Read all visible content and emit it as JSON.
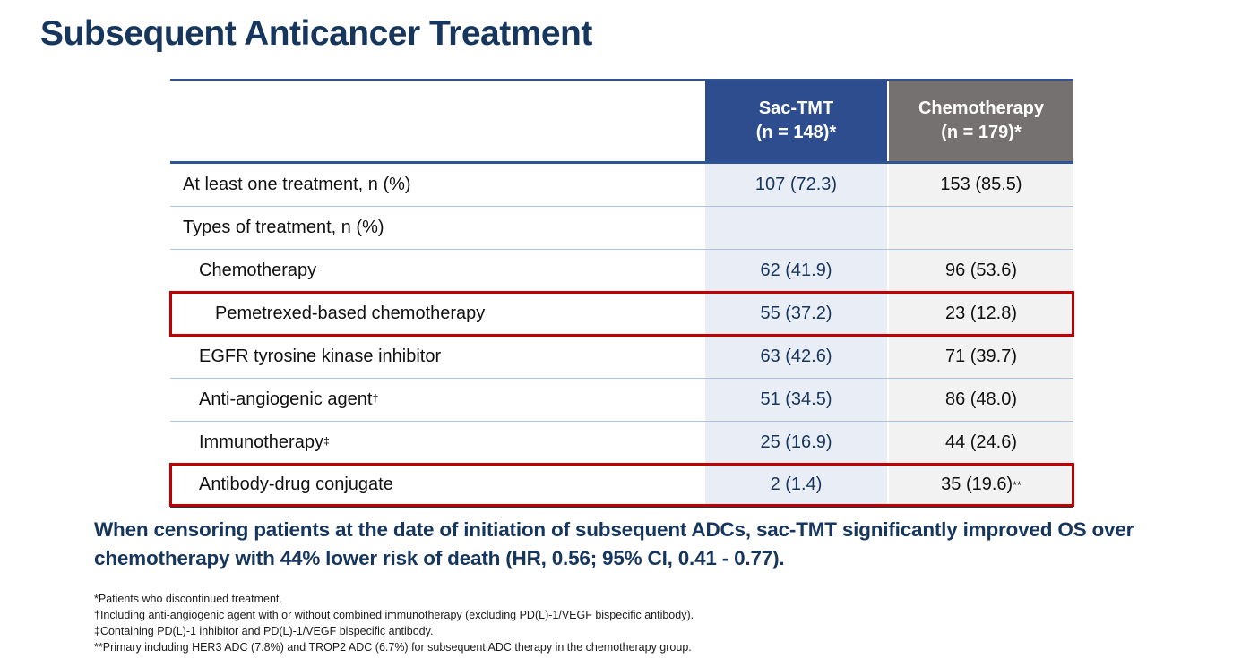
{
  "title": "Subsequent Anticancer Treatment",
  "table": {
    "header": {
      "sac": {
        "line1": "Sac-TMT",
        "line2": "(n = 148)*"
      },
      "chemo": {
        "line1": "Chemotherapy",
        "line2": "(n = 179)*"
      }
    },
    "rows": [
      {
        "label": "At least one treatment, n (%)",
        "sac": "107 (72.3)",
        "chemo": "153 (85.5)"
      },
      {
        "label": "Types of treatment, n (%)",
        "sac": "",
        "chemo": ""
      },
      {
        "label": "Chemotherapy",
        "sac": "62 (41.9)",
        "chemo": "96 (53.6)"
      },
      {
        "label": "Pemetrexed-based chemotherapy",
        "sac": "55 (37.2)",
        "chemo": "23 (12.8)"
      },
      {
        "label": "EGFR tyrosine kinase inhibitor",
        "sac": "63 (42.6)",
        "chemo": "71 (39.7)"
      },
      {
        "label": "Anti-angiogenic agent",
        "label_sup": "†",
        "sac": "51 (34.5)",
        "chemo": "86 (48.0)"
      },
      {
        "label": "Immunotherapy",
        "label_sup": "‡",
        "sac": "25 (16.9)",
        "chemo": "44 (24.6)"
      },
      {
        "label": "Antibody-drug conjugate",
        "sac": "2 (1.4)",
        "chemo": "35 (19.6)",
        "chemo_sup": "**"
      }
    ]
  },
  "statement": "When censoring patients at the date of initiation of subsequent ADCs, sac-TMT significantly improved OS over chemotherapy with 44% lower risk of death (HR, 0.56; 95% CI, 0.41 - 0.77).",
  "footnotes": [
    "*Patients who discontinued treatment.",
    "†Including anti-angiogenic agent with or without combined immunotherapy (excluding PD(L)-1/VEGF bispecific antibody).",
    "‡Containing PD(L)-1 inhibitor and PD(L)-1/VEGF bispecific antibody.",
    "**Primary including HER3 ADC (7.8%) and TROP2 ADC (6.7%) for subsequent ADC therapy in the chemotherapy group."
  ],
  "colors": {
    "title_navy": "#17365d",
    "header_blue": "#2e4d8e",
    "header_gray": "#767171",
    "sac_column_bg": "#e9edf6",
    "chemo_column_bg": "#f2f2f2",
    "row_divider_blue": "#a9c3e2",
    "highlight_red": "#c00000"
  }
}
